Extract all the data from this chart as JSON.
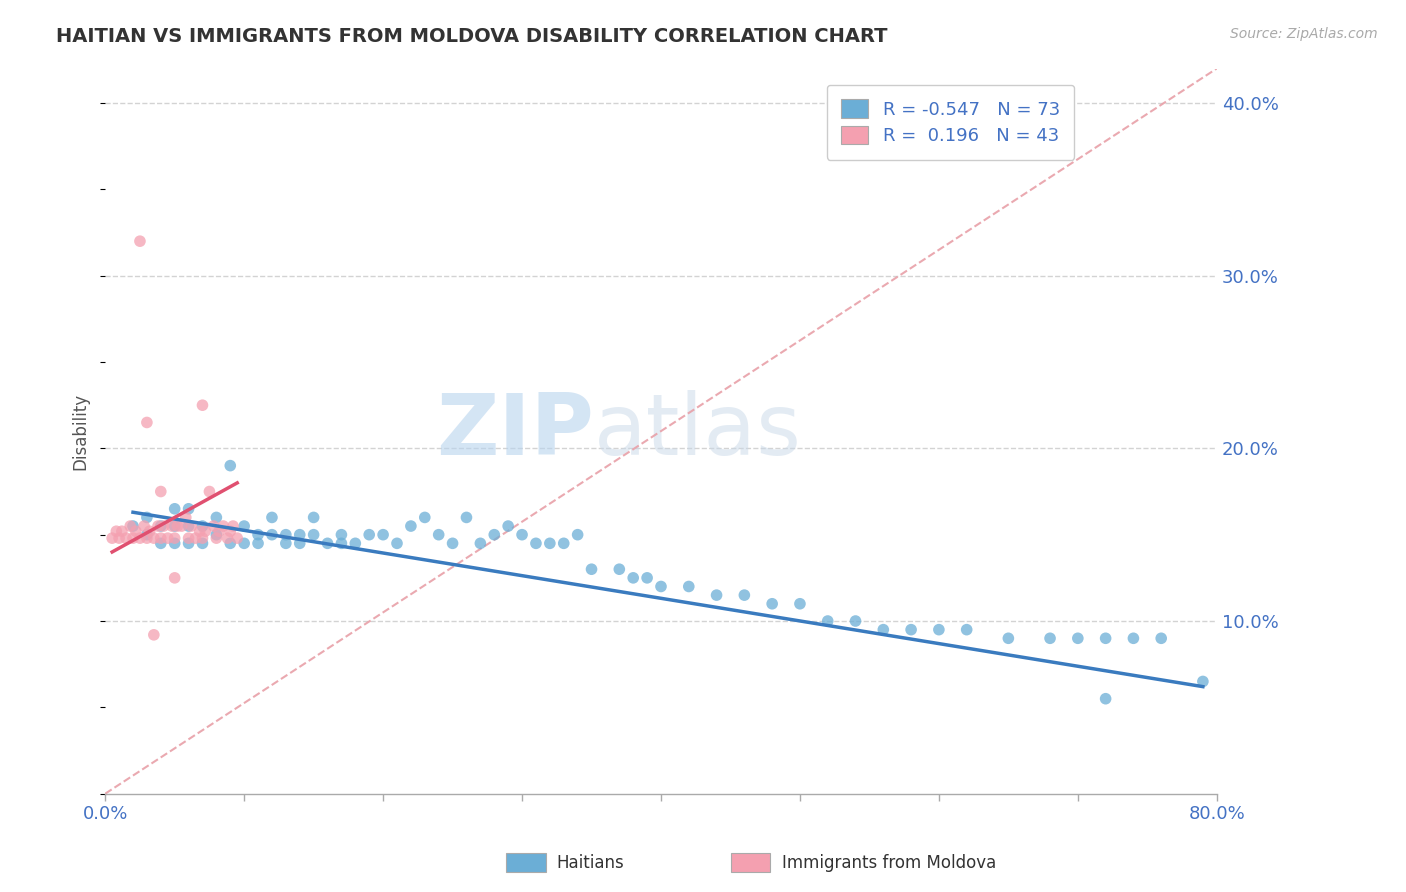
{
  "title": "HAITIAN VS IMMIGRANTS FROM MOLDOVA DISABILITY CORRELATION CHART",
  "source": "Source: ZipAtlas.com",
  "ylabel": "Disability",
  "xlim": [
    0.0,
    0.8
  ],
  "ylim": [
    0.0,
    0.42
  ],
  "yticks": [
    0.1,
    0.2,
    0.3,
    0.4
  ],
  "ytick_labels": [
    "10.0%",
    "20.0%",
    "30.0%",
    "40.0%"
  ],
  "xticks": [
    0.0,
    0.1,
    0.2,
    0.3,
    0.4,
    0.5,
    0.6,
    0.7,
    0.8
  ],
  "haitian_color": "#6baed6",
  "moldova_color": "#f4a0b0",
  "haitian_R": -0.547,
  "haitian_N": 73,
  "moldova_R": 0.196,
  "moldova_N": 43,
  "watermark_zip": "ZIP",
  "watermark_atlas": "atlas",
  "tick_color": "#4472c4",
  "grid_color": "#c8c8c8",
  "haitian_scatter_x": [
    0.02,
    0.03,
    0.03,
    0.04,
    0.04,
    0.05,
    0.05,
    0.05,
    0.06,
    0.06,
    0.06,
    0.07,
    0.07,
    0.08,
    0.08,
    0.09,
    0.09,
    0.1,
    0.1,
    0.11,
    0.11,
    0.12,
    0.12,
    0.13,
    0.13,
    0.14,
    0.14,
    0.15,
    0.15,
    0.16,
    0.17,
    0.17,
    0.18,
    0.19,
    0.2,
    0.21,
    0.22,
    0.23,
    0.24,
    0.25,
    0.26,
    0.27,
    0.28,
    0.29,
    0.3,
    0.31,
    0.32,
    0.33,
    0.34,
    0.35,
    0.37,
    0.38,
    0.39,
    0.4,
    0.42,
    0.44,
    0.46,
    0.48,
    0.5,
    0.52,
    0.54,
    0.56,
    0.58,
    0.6,
    0.62,
    0.65,
    0.68,
    0.7,
    0.72,
    0.74,
    0.76,
    0.72,
    0.79
  ],
  "haitian_scatter_y": [
    0.155,
    0.15,
    0.16,
    0.145,
    0.155,
    0.145,
    0.155,
    0.165,
    0.145,
    0.155,
    0.165,
    0.145,
    0.155,
    0.15,
    0.16,
    0.19,
    0.145,
    0.145,
    0.155,
    0.15,
    0.145,
    0.15,
    0.16,
    0.15,
    0.145,
    0.15,
    0.145,
    0.15,
    0.16,
    0.145,
    0.15,
    0.145,
    0.145,
    0.15,
    0.15,
    0.145,
    0.155,
    0.16,
    0.15,
    0.145,
    0.16,
    0.145,
    0.15,
    0.155,
    0.15,
    0.145,
    0.145,
    0.145,
    0.15,
    0.13,
    0.13,
    0.125,
    0.125,
    0.12,
    0.12,
    0.115,
    0.115,
    0.11,
    0.11,
    0.1,
    0.1,
    0.095,
    0.095,
    0.095,
    0.095,
    0.09,
    0.09,
    0.09,
    0.09,
    0.09,
    0.09,
    0.055,
    0.065
  ],
  "moldova_scatter_x": [
    0.005,
    0.008,
    0.01,
    0.012,
    0.015,
    0.018,
    0.02,
    0.022,
    0.025,
    0.028,
    0.03,
    0.032,
    0.035,
    0.038,
    0.04,
    0.042,
    0.045,
    0.048,
    0.05,
    0.052,
    0.055,
    0.058,
    0.06,
    0.062,
    0.065,
    0.068,
    0.07,
    0.072,
    0.075,
    0.078,
    0.08,
    0.082,
    0.085,
    0.088,
    0.09,
    0.092,
    0.095,
    0.03,
    0.05,
    0.07,
    0.04,
    0.025,
    0.035
  ],
  "moldova_scatter_y": [
    0.148,
    0.152,
    0.148,
    0.152,
    0.148,
    0.155,
    0.148,
    0.152,
    0.148,
    0.155,
    0.148,
    0.152,
    0.148,
    0.155,
    0.148,
    0.155,
    0.148,
    0.155,
    0.148,
    0.155,
    0.155,
    0.16,
    0.148,
    0.155,
    0.148,
    0.152,
    0.148,
    0.152,
    0.175,
    0.155,
    0.148,
    0.152,
    0.155,
    0.148,
    0.152,
    0.155,
    0.148,
    0.215,
    0.125,
    0.225,
    0.175,
    0.32,
    0.092
  ],
  "haitian_line_x": [
    0.02,
    0.79
  ],
  "haitian_line_y": [
    0.163,
    0.062
  ],
  "moldova_line_x": [
    0.005,
    0.095
  ],
  "moldova_line_y": [
    0.14,
    0.18
  ],
  "diag_line_x": [
    0.0,
    0.8
  ],
  "diag_line_y": [
    0.0,
    0.42
  ],
  "bottom_legend_labels": [
    "Haitians",
    "Immigrants from Moldova"
  ]
}
